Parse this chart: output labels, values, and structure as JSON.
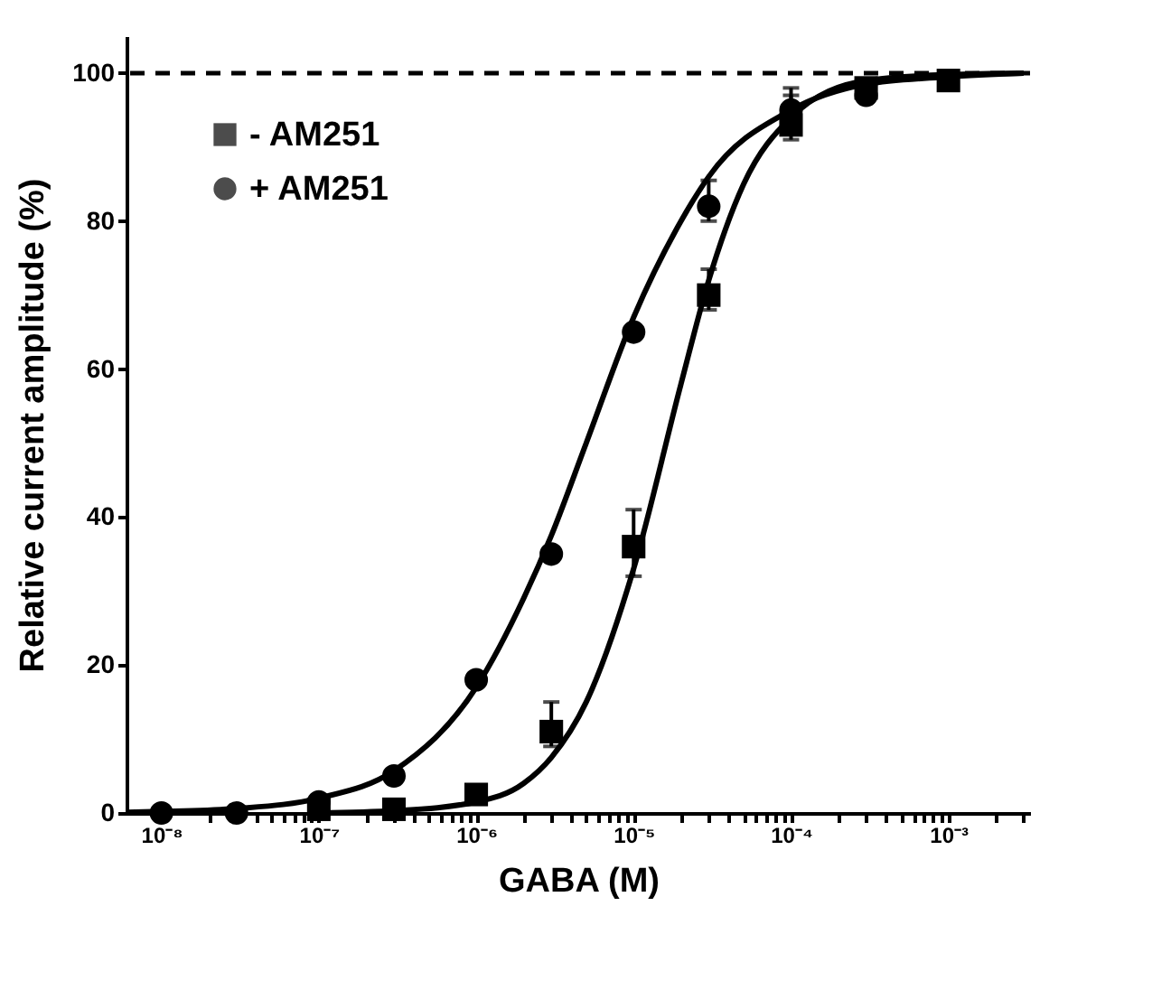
{
  "chart_data": {
    "type": "scatter",
    "xlabel": "GABA (M)",
    "ylabel": "Relative current amplitude (%)",
    "log": "x",
    "grid": false,
    "legend": "top left",
    "xlim": [
      6e-09,
      0.0033
    ],
    "xticks": [
      {
        "value": 1e-08,
        "label": "10⁻⁸"
      },
      {
        "value": 2e-08,
        "label": null
      },
      {
        "value": 3e-08,
        "label": null
      },
      {
        "value": 4e-08,
        "label": null
      },
      {
        "value": 5e-08,
        "label": null
      },
      {
        "value": 6e-08,
        "label": null
      },
      {
        "value": 7e-08,
        "label": null
      },
      {
        "value": 8e-08,
        "label": null
      },
      {
        "value": 9e-08,
        "label": null
      },
      {
        "value": 1e-07,
        "label": "10⁻⁷"
      },
      {
        "value": 2e-07,
        "label": null
      },
      {
        "value": 3e-07,
        "label": null
      },
      {
        "value": 4e-07,
        "label": null
      },
      {
        "value": 5e-07,
        "label": null
      },
      {
        "value": 6e-07,
        "label": null
      },
      {
        "value": 7e-07,
        "label": null
      },
      {
        "value": 8e-07,
        "label": null
      },
      {
        "value": 9e-07,
        "label": null
      },
      {
        "value": 1e-06,
        "label": "10⁻⁶"
      },
      {
        "value": 2e-06,
        "label": null
      },
      {
        "value": 3e-06,
        "label": null
      },
      {
        "value": 4e-06,
        "label": null
      },
      {
        "value": 5e-06,
        "label": null
      },
      {
        "value": 6e-06,
        "label": null
      },
      {
        "value": 7e-06,
        "label": null
      },
      {
        "value": 8e-06,
        "label": null
      },
      {
        "value": 9e-06,
        "label": null
      },
      {
        "value": 1e-05,
        "label": "10⁻⁵"
      },
      {
        "value": 2e-05,
        "label": null
      },
      {
        "value": 3e-05,
        "label": null
      },
      {
        "value": 4e-05,
        "label": null
      },
      {
        "value": 5e-05,
        "label": null
      },
      {
        "value": 6e-05,
        "label": null
      },
      {
        "value": 7e-05,
        "label": null
      },
      {
        "value": 8e-05,
        "label": null
      },
      {
        "value": 9e-05,
        "label": null
      },
      {
        "value": 0.0001,
        "label": "10⁻⁴"
      },
      {
        "value": 0.0002,
        "label": null
      },
      {
        "value": 0.0003,
        "label": null
      },
      {
        "value": 0.0004,
        "label": null
      },
      {
        "value": 0.0005,
        "label": null
      },
      {
        "value": 0.0006,
        "label": null
      },
      {
        "value": 0.0007,
        "label": null
      },
      {
        "value": 0.0008,
        "label": null
      },
      {
        "value": 0.0009,
        "label": null
      },
      {
        "value": 0.001,
        "label": "10⁻³"
      },
      {
        "value": 0.002,
        "label": null
      },
      {
        "value": 0.003,
        "label": null
      }
    ],
    "ylim": [
      0,
      105
    ],
    "yticks": [
      0,
      20,
      40,
      60,
      80,
      100
    ],
    "ref_lines": [
      {
        "axis": "y",
        "value": 100,
        "color": "#000000",
        "line_style": "dashed"
      }
    ],
    "series": [
      {
        "name": "- AM251",
        "type": "scatter",
        "marker": "square",
        "color": "#000000",
        "x": [
          1e-07,
          3e-07,
          1e-06,
          3e-06,
          1e-05,
          3e-05,
          0.0001,
          0.0003,
          0.001
        ],
        "values": [
          0.5,
          0.5,
          2.5,
          11,
          36,
          70,
          93,
          98,
          99
        ],
        "errors": [
          null,
          null,
          null,
          [
            9,
            15
          ],
          [
            32,
            41
          ],
          [
            68,
            73.5
          ],
          [
            91,
            97
          ],
          null,
          null
        ]
      },
      {
        "name": "+ AM251",
        "type": "scatter",
        "marker": "circle",
        "color": "#000000",
        "x": [
          1e-08,
          3e-08,
          1e-07,
          3e-07,
          1e-06,
          3e-06,
          1e-05,
          3e-05,
          0.0001,
          0.0003
        ],
        "values": [
          0,
          0,
          1.5,
          5,
          18,
          35,
          65,
          82,
          95,
          97
        ],
        "errors": [
          null,
          null,
          null,
          null,
          null,
          null,
          null,
          [
            80,
            85.5
          ],
          [
            92,
            98
          ],
          null
        ]
      },
      {
        "type": "line",
        "color": "#000000",
        "x": [
          1e-07,
          3e-07,
          1e-06,
          2e-06,
          3e-06,
          5e-06,
          1e-05,
          2e-05,
          3e-05,
          5e-05,
          0.0001,
          0.0003,
          0.001,
          0.003
        ],
        "values": [
          0,
          0.3,
          1.5,
          4,
          7.5,
          15,
          33,
          58,
          72,
          85,
          94,
          99,
          99.8,
          100
        ]
      },
      {
        "type": "line",
        "color": "#000000",
        "x": [
          6e-09,
          1e-08,
          3e-08,
          1e-07,
          3e-07,
          1e-06,
          2e-06,
          3e-06,
          5e-06,
          1e-05,
          2e-05,
          3e-05,
          0.0001,
          0.0003,
          0.001,
          0.003
        ],
        "values": [
          0.1,
          0.2,
          0.6,
          2,
          5.7,
          17,
          29,
          37.5,
          50,
          67,
          80,
          86,
          95,
          98.5,
          99.5,
          100
        ]
      }
    ]
  }
}
